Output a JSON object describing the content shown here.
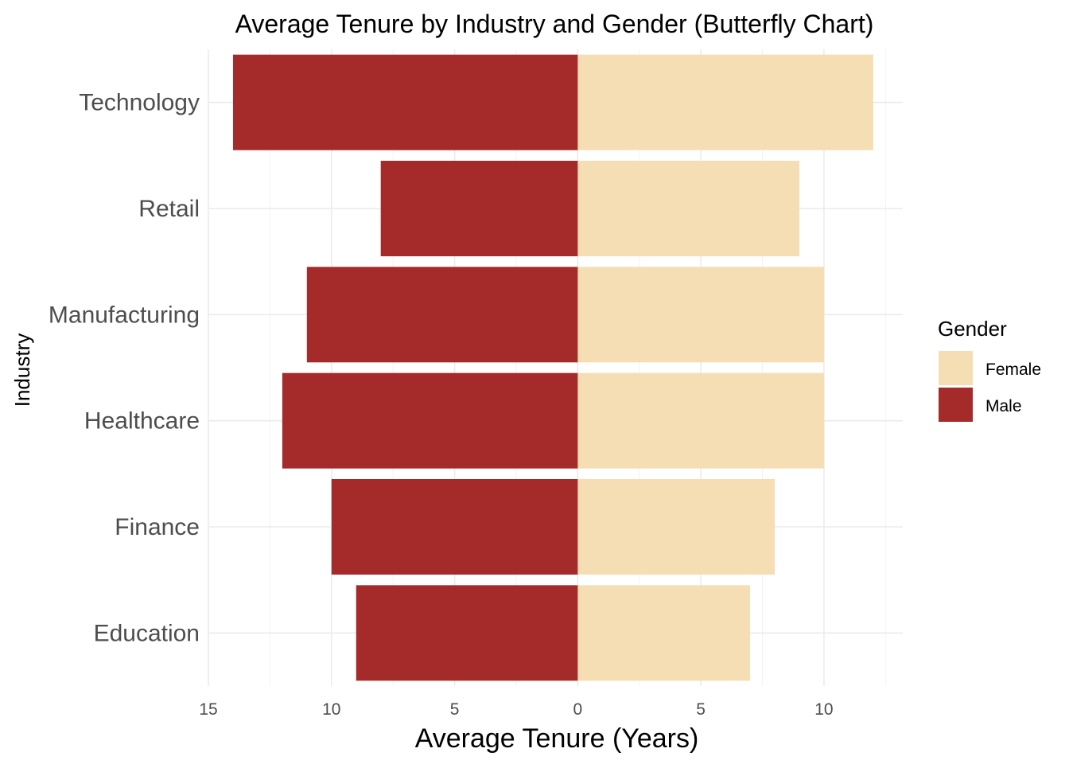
{
  "chart_data": {
    "type": "bar",
    "orientation": "horizontal",
    "subtype": "butterfly",
    "title": "Average Tenure by Industry and Gender (Butterfly Chart)",
    "xlabel": "Average Tenure (Years)",
    "ylabel": "Industry",
    "categories": [
      "Education",
      "Finance",
      "Healthcare",
      "Manufacturing",
      "Retail",
      "Technology"
    ],
    "series": [
      {
        "name": "Female",
        "color": "#F5DEB3",
        "direction": "right",
        "values": [
          7,
          8,
          10,
          10,
          9,
          12
        ]
      },
      {
        "name": "Male",
        "color": "#A52A2A",
        "direction": "left",
        "values": [
          9,
          10,
          12,
          11,
          8,
          14
        ]
      }
    ],
    "xlim": [
      -15,
      13.2
    ],
    "xticks": [
      -15,
      -10,
      -5,
      0,
      5,
      10
    ],
    "xtick_labels": [
      "15",
      "10",
      "5",
      "0",
      "5",
      "10"
    ],
    "grid": true,
    "legend": {
      "title": "Gender",
      "position": "right",
      "entries": [
        "Female",
        "Male"
      ]
    }
  }
}
